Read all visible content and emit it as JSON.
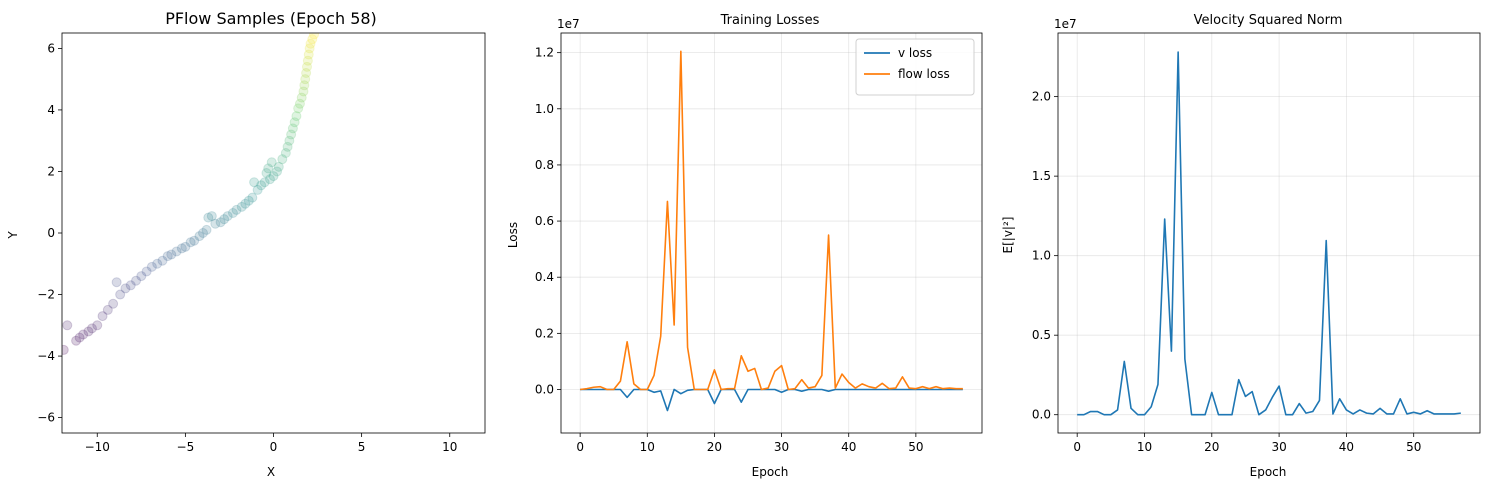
{
  "chart_data": [
    {
      "type": "scatter",
      "title": "PFlow Samples (Epoch 58)",
      "xlabel": "X",
      "ylabel": "Y",
      "xlim": [
        -12,
        12
      ],
      "ylim": [
        -6.5,
        6.5
      ],
      "xticks": [
        -10,
        -5,
        0,
        5,
        10
      ],
      "yticks": [
        -6,
        -4,
        -2,
        0,
        2,
        4,
        6
      ],
      "xtick_labels": [
        "−10",
        "−5",
        "0",
        "5",
        "10"
      ],
      "ytick_labels": [
        "−6",
        "−4",
        "−2",
        "0",
        "2",
        "4",
        "6"
      ],
      "grid": false,
      "colormap": "viridis",
      "point_alpha": 0.2,
      "points": [
        [
          -11.9,
          -3.8
        ],
        [
          -11.7,
          -3.0
        ],
        [
          -11.2,
          -3.5
        ],
        [
          -11.0,
          -3.4
        ],
        [
          -10.8,
          -3.3
        ],
        [
          -10.5,
          -3.2
        ],
        [
          -10.3,
          -3.1
        ],
        [
          -10.0,
          -3.0
        ],
        [
          -9.7,
          -2.7
        ],
        [
          -9.4,
          -2.5
        ],
        [
          -9.1,
          -2.3
        ],
        [
          -8.9,
          -1.6
        ],
        [
          -8.7,
          -2.0
        ],
        [
          -8.4,
          -1.8
        ],
        [
          -8.1,
          -1.7
        ],
        [
          -7.8,
          -1.55
        ],
        [
          -7.5,
          -1.4
        ],
        [
          -7.2,
          -1.25
        ],
        [
          -6.9,
          -1.1
        ],
        [
          -6.6,
          -1.0
        ],
        [
          -6.3,
          -0.9
        ],
        [
          -6.0,
          -0.75
        ],
        [
          -5.8,
          -0.7
        ],
        [
          -5.5,
          -0.6
        ],
        [
          -5.2,
          -0.5
        ],
        [
          -5.0,
          -0.45
        ],
        [
          -4.7,
          -0.3
        ],
        [
          -4.5,
          -0.25
        ],
        [
          -4.2,
          -0.1
        ],
        [
          -4.0,
          0.0
        ],
        [
          -3.8,
          0.1
        ],
        [
          -3.7,
          0.5
        ],
        [
          -3.5,
          0.55
        ],
        [
          -3.3,
          0.3
        ],
        [
          -3.0,
          0.35
        ],
        [
          -2.8,
          0.45
        ],
        [
          -2.6,
          0.55
        ],
        [
          -2.3,
          0.65
        ],
        [
          -2.1,
          0.75
        ],
        [
          -1.8,
          0.85
        ],
        [
          -1.6,
          0.95
        ],
        [
          -1.4,
          1.05
        ],
        [
          -1.2,
          1.15
        ],
        [
          -1.1,
          1.65
        ],
        [
          -0.9,
          1.4
        ],
        [
          -0.7,
          1.55
        ],
        [
          -0.5,
          1.65
        ],
        [
          -0.4,
          1.95
        ],
        [
          -0.3,
          2.1
        ],
        [
          -0.2,
          1.75
        ],
        [
          -0.1,
          2.3
        ],
        [
          0.0,
          1.85
        ],
        [
          0.2,
          2.0
        ],
        [
          0.3,
          2.15
        ],
        [
          0.5,
          2.4
        ],
        [
          0.7,
          2.6
        ],
        [
          0.8,
          2.8
        ],
        [
          0.9,
          3.0
        ],
        [
          1.0,
          3.2
        ],
        [
          1.1,
          3.4
        ],
        [
          1.2,
          3.6
        ],
        [
          1.3,
          3.8
        ],
        [
          1.4,
          4.05
        ],
        [
          1.5,
          4.2
        ],
        [
          1.6,
          4.4
        ],
        [
          1.7,
          4.6
        ],
        [
          1.75,
          4.8
        ],
        [
          1.8,
          5.0
        ],
        [
          1.85,
          5.2
        ],
        [
          1.9,
          5.4
        ],
        [
          1.95,
          5.6
        ],
        [
          2.0,
          5.8
        ],
        [
          2.05,
          6.0
        ],
        [
          2.1,
          6.15
        ],
        [
          2.2,
          6.3
        ],
        [
          2.3,
          6.45
        ]
      ]
    },
    {
      "type": "line",
      "title": "Training Losses",
      "xlabel": "Epoch",
      "ylabel": "Loss",
      "scale_label": "1e7",
      "xlim": [
        -2.85,
        59.85
      ],
      "ylim": [
        -0.155,
        1.27
      ],
      "xticks": [
        0,
        10,
        20,
        30,
        40,
        50
      ],
      "yticks": [
        0.0,
        0.2,
        0.4,
        0.6,
        0.8,
        1.0,
        1.2
      ],
      "ytick_labels": [
        "0.0",
        "0.2",
        "0.4",
        "0.6",
        "0.8",
        "1.0",
        "1.2"
      ],
      "grid": true,
      "legend": "top-right",
      "series": [
        {
          "name": "v loss",
          "color": "#1f77b4",
          "values": [
            0,
            0,
            0,
            0,
            0,
            0,
            0,
            -0.028,
            0,
            0,
            0,
            -0.01,
            -0.005,
            -0.075,
            0,
            -0.015,
            -0.003,
            0,
            0,
            0,
            -0.05,
            0,
            0,
            0,
            -0.045,
            0,
            0,
            0,
            0,
            0,
            -0.01,
            0,
            0,
            -0.006,
            0,
            0,
            0,
            -0.006,
            0,
            0,
            0,
            0,
            0,
            0,
            0,
            0,
            0,
            0,
            0,
            0,
            0,
            0,
            0,
            0,
            0,
            0,
            0,
            0
          ]
        },
        {
          "name": "flow loss",
          "color": "#ff7f0e",
          "values": [
            0,
            0.003,
            0.008,
            0.01,
            0,
            0,
            0.03,
            0.17,
            0.02,
            0,
            0,
            0.05,
            0.19,
            0.67,
            0.23,
            1.205,
            0.15,
            0,
            0,
            0,
            0.07,
            0,
            0.003,
            0.003,
            0.12,
            0.065,
            0.075,
            0,
            0.005,
            0.065,
            0.085,
            0,
            0.003,
            0.035,
            0.005,
            0.01,
            0.05,
            0.55,
            0.005,
            0.055,
            0.025,
            0.005,
            0.02,
            0.01,
            0.005,
            0.022,
            0.003,
            0.005,
            0.045,
            0.005,
            0.003,
            0.01,
            0.003,
            0.01,
            0.003,
            0.005,
            0.003,
            0.003
          ]
        }
      ]
    },
    {
      "type": "line",
      "title": "Velocity Squared Norm",
      "xlabel": "Epoch",
      "ylabel": "E[|v|²]",
      "scale_label": "1e7",
      "xlim": [
        -2.85,
        59.85
      ],
      "ylim": [
        -0.115,
        2.4
      ],
      "xticks": [
        0,
        10,
        20,
        30,
        40,
        50
      ],
      "yticks": [
        0.0,
        0.5,
        1.0,
        1.5,
        2.0
      ],
      "ytick_labels": [
        "0.0",
        "0.5",
        "1.0",
        "1.5",
        "2.0"
      ],
      "grid": true,
      "series": [
        {
          "color": "#1f77b4",
          "values": [
            0,
            0,
            0.02,
            0.02,
            0,
            0,
            0.03,
            0.335,
            0.04,
            0,
            0,
            0.05,
            0.19,
            1.23,
            0.4,
            2.28,
            0.35,
            0,
            0,
            0,
            0.14,
            0,
            0,
            0,
            0.22,
            0.115,
            0.145,
            0,
            0.03,
            0.11,
            0.18,
            0,
            0,
            0.07,
            0.01,
            0.02,
            0.09,
            1.095,
            0.005,
            0.1,
            0.03,
            0.005,
            0.03,
            0.01,
            0.005,
            0.04,
            0.005,
            0.005,
            0.1,
            0.005,
            0.015,
            0.005,
            0.025,
            0.005,
            0.005,
            0.005,
            0.005,
            0.01
          ]
        }
      ]
    }
  ]
}
